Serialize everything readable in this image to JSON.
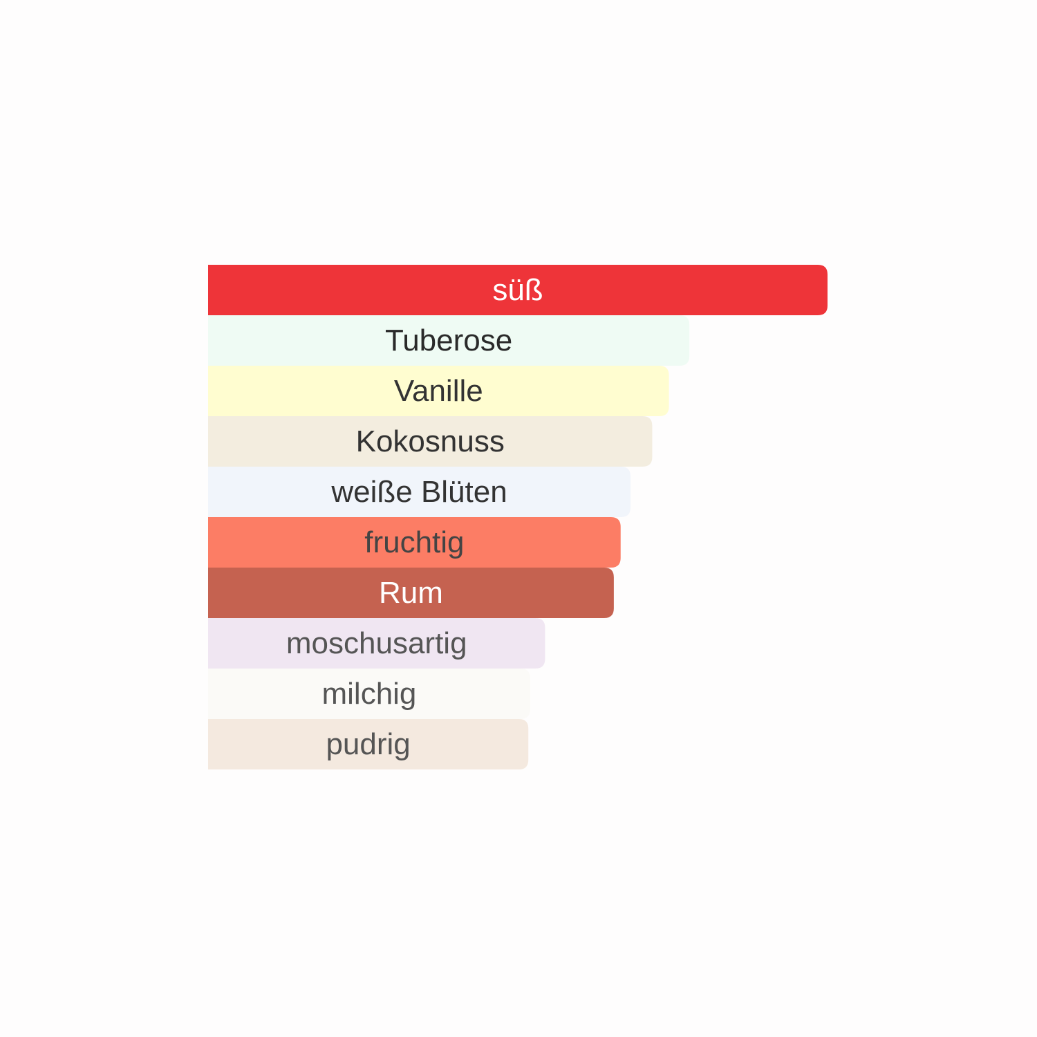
{
  "chart_data": {
    "type": "bar",
    "orientation": "horizontal",
    "categories": [
      "süß",
      "Tuberose",
      "Vanille",
      "Kokosnuss",
      "weiße Blüten",
      "fruchtig",
      "Rum",
      "moschusartig",
      "milchig",
      "pudrig"
    ],
    "values": [
      100,
      77.7,
      74.4,
      71.7,
      68.2,
      66.6,
      65.5,
      54.4,
      52.0,
      51.7
    ],
    "xlim": [
      0,
      100
    ],
    "colors": [
      "#ee3439",
      "#effbf4",
      "#fffdd0",
      "#f3eddf",
      "#f1f5fb",
      "#fc7d65",
      "#c56250",
      "#f0e6f2",
      "#fbfaf7",
      "#f4e9df"
    ],
    "text_colors": [
      "#ffffff",
      "#2a2a2a",
      "#333333",
      "#333333",
      "#333333",
      "#444444",
      "#ffffff",
      "#555555",
      "#555555",
      "#555555"
    ]
  }
}
